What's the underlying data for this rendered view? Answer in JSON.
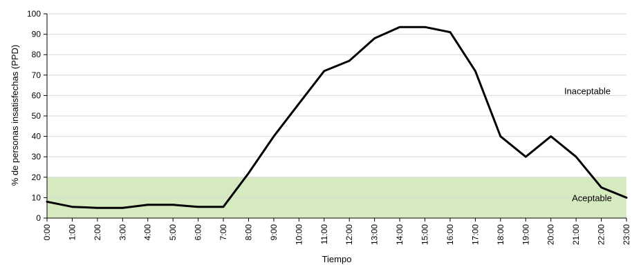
{
  "chart_data": {
    "type": "line",
    "title": "",
    "xlabel": "Tiempo",
    "ylabel": "% de personas insatisfechas (PPD)",
    "ylim": [
      0,
      100
    ],
    "yticks": [
      "0",
      "10",
      "20",
      "30",
      "40",
      "50",
      "60",
      "70",
      "80",
      "90",
      "100"
    ],
    "grid": true,
    "categories": [
      "0:00",
      "1:00",
      "2:00",
      "3:00",
      "4:00",
      "5:00",
      "6:00",
      "7:00",
      "8:00",
      "9:00",
      "10:00",
      "11:00",
      "12:00",
      "13:00",
      "14:00",
      "15:00",
      "16:00",
      "17:00",
      "18:00",
      "19:00",
      "20:00",
      "21:00",
      "22:00",
      "23:00"
    ],
    "series": [
      {
        "values": [
          8,
          5.5,
          5,
          5,
          6.5,
          6.5,
          5.5,
          5.5,
          22,
          40,
          56,
          72,
          77,
          88,
          93.5,
          93.5,
          91,
          72,
          40,
          30,
          40,
          30,
          15,
          10
        ]
      }
    ],
    "band": {
      "from": 0,
      "to": 20,
      "label": "Aceptable",
      "color": "#d6eabf"
    },
    "annotations": [
      {
        "text": "Inaceptable",
        "x": "22:00",
        "y": 60
      }
    ],
    "line_color": "#000000"
  }
}
